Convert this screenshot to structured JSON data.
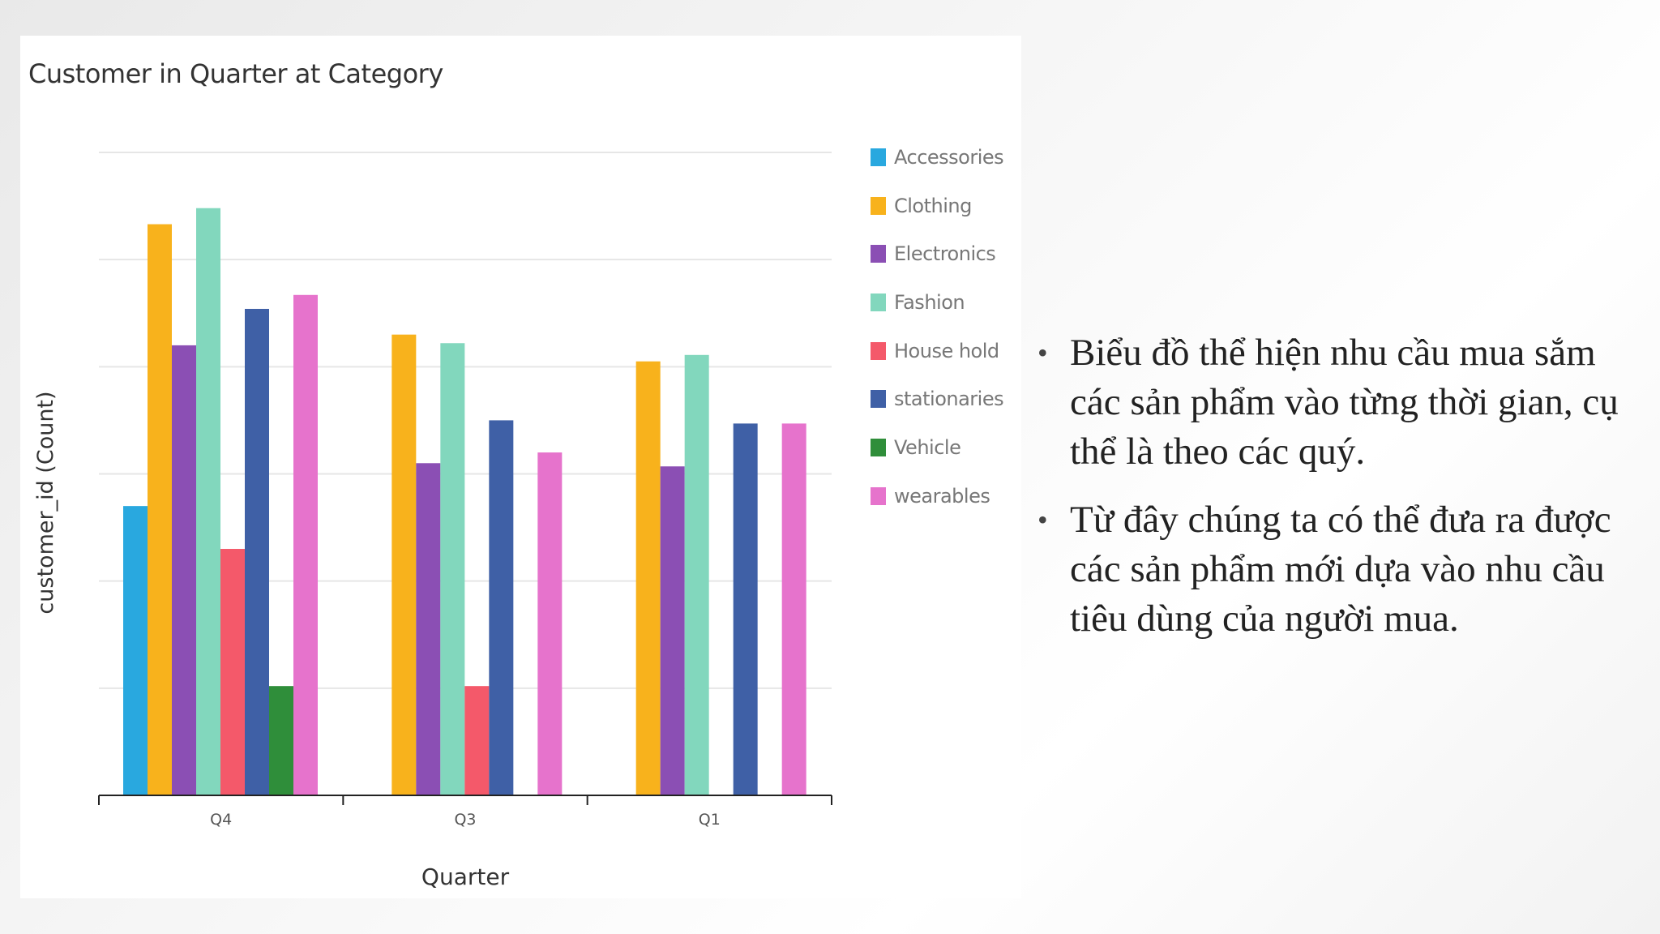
{
  "slide": {
    "bullets": [
      "Biểu đồ thể hiện nhu cầu mua sắm các sản phẩm vào từng thời gian, cụ thể là theo các quý.",
      "Từ đây chúng ta có thể đưa ra được các sản phẩm mới dựa vào nhu cầu tiêu dùng của người mua."
    ],
    "bullet_symbol": "•"
  },
  "chart_data": {
    "type": "bar",
    "title": "Customer in Quarter at Category",
    "xlabel": "Quarter",
    "ylabel": "customer_id (Count)",
    "ylim": [
      0,
      6
    ],
    "grid": true,
    "legend_position": "right",
    "categories": [
      "Q4",
      "Q3",
      "Q1"
    ],
    "series": [
      {
        "name": "Accessories",
        "color": "#29A8DF",
        "values": [
          2.7,
          null,
          null
        ]
      },
      {
        "name": "Clothing",
        "color": "#F8B21C",
        "values": [
          5.33,
          4.3,
          4.05
        ]
      },
      {
        "name": "Electronics",
        "color": "#8B4FB4",
        "values": [
          4.2,
          3.1,
          3.07
        ]
      },
      {
        "name": "Fashion",
        "color": "#82D7BD",
        "values": [
          5.48,
          4.22,
          4.11
        ]
      },
      {
        "name": "House hold",
        "color": "#F4596A",
        "values": [
          2.3,
          1.02,
          null
        ]
      },
      {
        "name": "stationaries",
        "color": "#3F60A6",
        "values": [
          4.54,
          3.5,
          3.47
        ]
      },
      {
        "name": "Vehicle",
        "color": "#2F8E3A",
        "values": [
          1.02,
          null,
          null
        ]
      },
      {
        "name": "wearables",
        "color": "#E673CC",
        "values": [
          4.67,
          3.2,
          3.47
        ]
      }
    ]
  }
}
